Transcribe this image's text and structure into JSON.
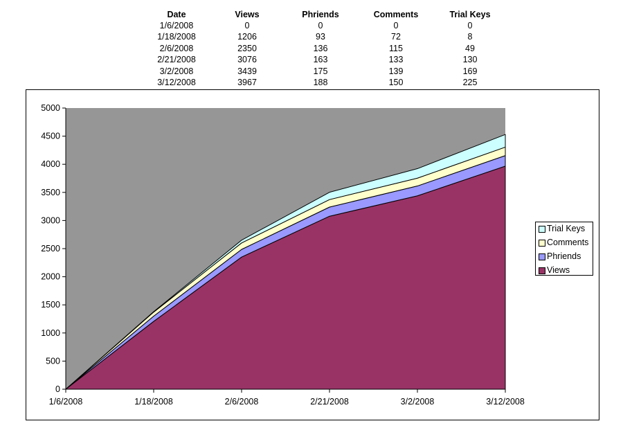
{
  "table": {
    "headers": [
      "Date",
      "Views",
      "Phriends",
      "Comments",
      "Trial Keys"
    ],
    "rows": [
      [
        "1/6/2008",
        "0",
        "0",
        "0",
        "0"
      ],
      [
        "1/18/2008",
        "1206",
        "93",
        "72",
        "8"
      ],
      [
        "2/6/2008",
        "2350",
        "136",
        "115",
        "49"
      ],
      [
        "2/21/2008",
        "3076",
        "163",
        "133",
        "130"
      ],
      [
        "3/2/2008",
        "3439",
        "175",
        "139",
        "169"
      ],
      [
        "3/12/2008",
        "3967",
        "188",
        "150",
        "225"
      ]
    ]
  },
  "chart_data": {
    "type": "area",
    "stacked": true,
    "categories": [
      "1/6/2008",
      "1/18/2008",
      "2/6/2008",
      "2/21/2008",
      "3/2/2008",
      "3/12/2008"
    ],
    "series": [
      {
        "name": "Views",
        "values": [
          0,
          1206,
          2350,
          3076,
          3439,
          3967
        ],
        "color": "#993366"
      },
      {
        "name": "Phriends",
        "values": [
          0,
          93,
          136,
          163,
          175,
          188
        ],
        "color": "#9999FF"
      },
      {
        "name": "Comments",
        "values": [
          0,
          72,
          115,
          133,
          139,
          150
        ],
        "color": "#FFFFCC"
      },
      {
        "name": "Trial Keys",
        "values": [
          0,
          8,
          49,
          130,
          169,
          225
        ],
        "color": "#CCFFFF"
      }
    ],
    "y_ticks": [
      "0",
      "500",
      "1000",
      "1500",
      "2000",
      "2500",
      "3000",
      "3500",
      "4000",
      "4500",
      "5000"
    ],
    "ylim": [
      0,
      5000
    ],
    "plot_background": "#969696",
    "grid": false,
    "legend": {
      "position": "right",
      "entries": [
        "Trial Keys",
        "Comments",
        "Phriends",
        "Views"
      ]
    }
  }
}
